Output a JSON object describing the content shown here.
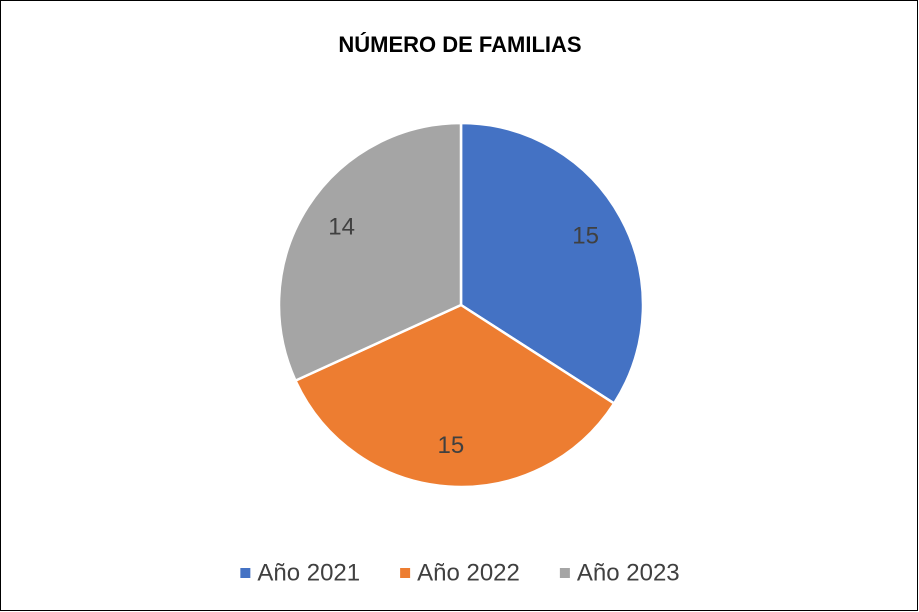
{
  "chart_data": {
    "type": "pie",
    "title": "NÚMERO DE FAMILIAS",
    "categories": [
      "Año 2021",
      "Año 2022",
      "Año 2023"
    ],
    "values": [
      15,
      15,
      14
    ],
    "colors": [
      "#4472c4",
      "#ed7d31",
      "#a5a5a5"
    ],
    "legend": "bottom"
  }
}
